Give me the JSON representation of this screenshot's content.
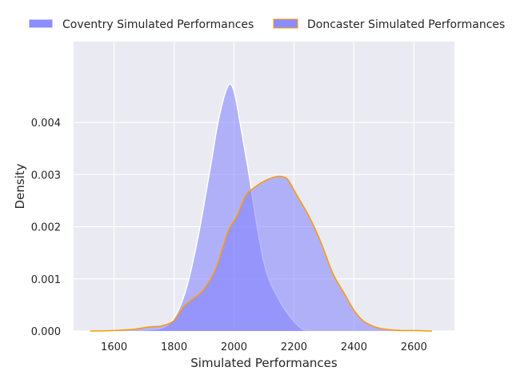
{
  "chart_data": {
    "type": "area",
    "title": "",
    "xlabel": "Simulated Performances",
    "ylabel": "Density",
    "xlim": [
      1465,
      2735
    ],
    "ylim": [
      0,
      0.00555
    ],
    "x_ticks": [
      1600,
      1800,
      2000,
      2200,
      2400,
      2600
    ],
    "x_tick_labels": [
      "1600",
      "1800",
      "2000",
      "2200",
      "2400",
      "2600"
    ],
    "y_ticks": [
      0,
      0.001,
      0.002,
      0.003,
      0.004
    ],
    "y_tick_labels": [
      "0.000",
      "0.001",
      "0.002",
      "0.003",
      "0.004"
    ],
    "grid": true,
    "legend_placement": "top, outside plot",
    "colors": {
      "background": "#eaeaf2",
      "grid": "#ffffff",
      "fill": "#8080ff",
      "coventry_edge": "#ffffff",
      "doncaster_edge": "#ff9900"
    },
    "series": [
      {
        "name": "Coventry Simulated Performances",
        "x": [
          1700,
          1760,
          1800,
          1840,
          1880,
          1920,
          1950,
          1980,
          2000,
          2020,
          2050,
          2080,
          2110,
          2150,
          2190,
          2230,
          2270
        ],
        "y": [
          2e-05,
          6e-05,
          0.00025,
          0.0008,
          0.0018,
          0.0031,
          0.0041,
          0.0047,
          0.0046,
          0.004,
          0.003,
          0.0019,
          0.0011,
          0.0006,
          0.00025,
          3e-05,
          0.0
        ]
      },
      {
        "name": "Doncaster Simulated Performances",
        "x": [
          1520,
          1600,
          1660,
          1720,
          1760,
          1800,
          1830,
          1860,
          1900,
          1940,
          1980,
          2010,
          2040,
          2080,
          2110,
          2140,
          2160,
          2180,
          2210,
          2250,
          2290,
          2330,
          2370,
          2400,
          2430,
          2470,
          2510,
          2560,
          2610,
          2660
        ],
        "y": [
          0.0,
          1e-05,
          3e-05,
          8e-05,
          0.0001,
          0.0002,
          0.00045,
          0.0006,
          0.0008,
          0.0012,
          0.0019,
          0.0022,
          0.0026,
          0.0028,
          0.0029,
          0.00296,
          0.00296,
          0.0029,
          0.0026,
          0.0022,
          0.0017,
          0.0011,
          0.0007,
          0.0004,
          0.0002,
          8e-05,
          3e-05,
          1e-05,
          1e-05,
          0.0
        ]
      }
    ]
  }
}
